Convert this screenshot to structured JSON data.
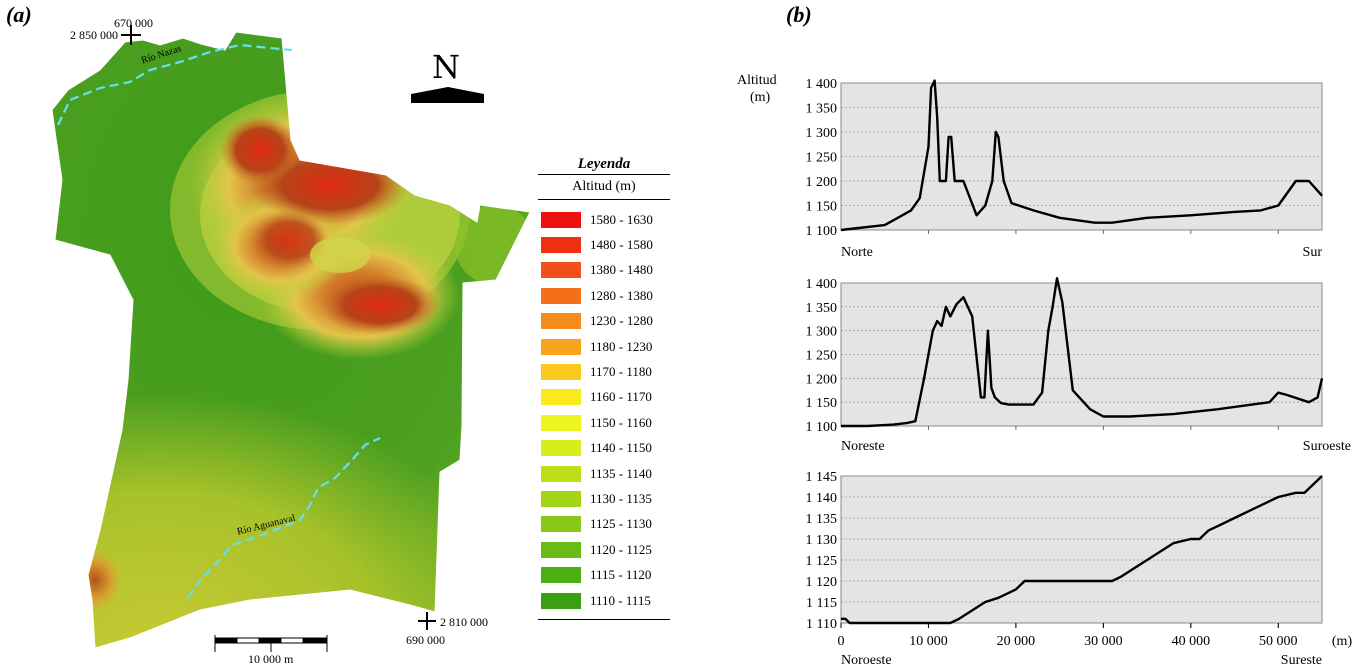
{
  "panels": {
    "a": "(a)",
    "b": "(b)"
  },
  "map": {
    "coords": {
      "top_easting": "670 000",
      "top_northing": "2 850 000",
      "bottom_northing": "2 810 000",
      "bottom_easting": "690 000"
    },
    "rivers": {
      "nazas": "Río Nazas",
      "aguanaval": "Río Aguanaval"
    },
    "north_symbol": "N",
    "scale_label": "10 000 m",
    "colors": {
      "river": "#66e0f0",
      "boundary": "#ffffff"
    }
  },
  "legend": {
    "title": "Leyenda",
    "subtitle": "Altitud (m)",
    "items": [
      {
        "label": "1580 - 1630",
        "color": "#ee1111"
      },
      {
        "label": "1480 - 1580",
        "color": "#ef2f12"
      },
      {
        "label": "1380 - 1480",
        "color": "#f25018"
      },
      {
        "label": "1280 - 1380",
        "color": "#f46f1a"
      },
      {
        "label": "1230 - 1280",
        "color": "#f68c1c"
      },
      {
        "label": "1180 - 1230",
        "color": "#f7a51d"
      },
      {
        "label": "1170 - 1180",
        "color": "#fbc81e"
      },
      {
        "label": "1160 - 1170",
        "color": "#fbe81f"
      },
      {
        "label": "1150 - 1160",
        "color": "#eef41e"
      },
      {
        "label": "1140 - 1150",
        "color": "#d9ec1c"
      },
      {
        "label": "1135 - 1140",
        "color": "#bede1b"
      },
      {
        "label": "1130 - 1135",
        "color": "#a3d418"
      },
      {
        "label": "1125 - 1130",
        "color": "#86c816"
      },
      {
        "label": "1120 - 1125",
        "color": "#69bc14"
      },
      {
        "label": "1115 - 1120",
        "color": "#4fae13"
      },
      {
        "label": "1110 - 1115",
        "color": "#3b9f12"
      }
    ]
  },
  "chart_data": [
    {
      "type": "line",
      "title": "",
      "ylabel": "Altitud (m)",
      "xlabel": "",
      "start_label": "Norte",
      "end_label": "Sur",
      "ylim": [
        1100,
        1400
      ],
      "xlim": [
        0,
        55000
      ],
      "yticks": [
        1100,
        1150,
        1200,
        1250,
        1300,
        1350,
        1400
      ],
      "ytick_labels": [
        "1 100",
        "1 150",
        "1 200",
        "1 250",
        "1 300",
        "1 350",
        "1 400"
      ],
      "x": [
        0,
        2000,
        5000,
        8000,
        9000,
        10000,
        10300,
        10700,
        11000,
        11300,
        12000,
        12300,
        12600,
        13000,
        14000,
        15500,
        16500,
        17300,
        17700,
        18000,
        18600,
        19500,
        22000,
        25000,
        29000,
        31000,
        35000,
        40000,
        45000,
        48000,
        50000,
        52000,
        53500,
        55000
      ],
      "y": [
        1100,
        1104,
        1110,
        1140,
        1165,
        1270,
        1390,
        1405,
        1330,
        1200,
        1200,
        1290,
        1290,
        1200,
        1200,
        1130,
        1150,
        1200,
        1300,
        1290,
        1200,
        1155,
        1140,
        1125,
        1115,
        1115,
        1125,
        1130,
        1137,
        1140,
        1150,
        1200,
        1200,
        1170
      ]
    },
    {
      "type": "line",
      "title": "",
      "ylabel": "",
      "xlabel": "",
      "start_label": "Noreste",
      "end_label": "Suroeste",
      "ylim": [
        1100,
        1400
      ],
      "xlim": [
        0,
        55000
      ],
      "yticks": [
        1100,
        1150,
        1200,
        1250,
        1300,
        1350,
        1400
      ],
      "ytick_labels": [
        "1 100",
        "1 150",
        "1 200",
        "1 250",
        "1 300",
        "1 350",
        "1 400"
      ],
      "x": [
        0,
        3000,
        6000,
        7500,
        8500,
        9500,
        10500,
        11000,
        11500,
        12000,
        12500,
        13200,
        14000,
        15000,
        16000,
        16400,
        16800,
        17200,
        17600,
        18300,
        19200,
        22000,
        23000,
        23700,
        24200,
        24700,
        25300,
        26500,
        28500,
        30000,
        33000,
        38000,
        43000,
        47000,
        49000,
        50000,
        51000,
        53500,
        54500,
        55000
      ],
      "y": [
        1100,
        1100,
        1103,
        1106,
        1110,
        1200,
        1300,
        1320,
        1310,
        1350,
        1330,
        1355,
        1370,
        1330,
        1160,
        1160,
        1300,
        1180,
        1160,
        1148,
        1145,
        1145,
        1170,
        1300,
        1350,
        1410,
        1360,
        1175,
        1135,
        1120,
        1120,
        1125,
        1135,
        1145,
        1150,
        1170,
        1165,
        1150,
        1160,
        1200
      ]
    },
    {
      "type": "line",
      "title": "",
      "ylabel": "",
      "xlabel": "(m)",
      "start_label": "Noroeste",
      "end_label": "Sureste",
      "ylim": [
        1110,
        1145
      ],
      "xlim": [
        0,
        55000
      ],
      "yticks": [
        1110,
        1115,
        1120,
        1125,
        1130,
        1135,
        1140,
        1145
      ],
      "ytick_labels": [
        "1 110",
        "1 115",
        "1 120",
        "1 125",
        "1 130",
        "1 135",
        "1 140",
        "1 145"
      ],
      "xticks": [
        0,
        10000,
        20000,
        30000,
        40000,
        50000
      ],
      "xtick_labels": [
        "0",
        "10 000",
        "20 000",
        "30 000",
        "40 000",
        "50 000"
      ],
      "x": [
        0,
        500,
        1000,
        12500,
        13500,
        15000,
        16500,
        18000,
        20000,
        21000,
        25000,
        31000,
        32000,
        35000,
        38000,
        40000,
        41000,
        42000,
        43000,
        45000,
        47000,
        49000,
        50000,
        52000,
        53000,
        54000,
        55000
      ],
      "y": [
        1111,
        1111,
        1110,
        1110,
        1111,
        1113,
        1115,
        1116,
        1118,
        1120,
        1120,
        1120,
        1121,
        1125,
        1129,
        1130,
        1130,
        1132,
        1133,
        1135,
        1137,
        1139,
        1140,
        1141,
        1141,
        1143,
        1145
      ]
    }
  ]
}
